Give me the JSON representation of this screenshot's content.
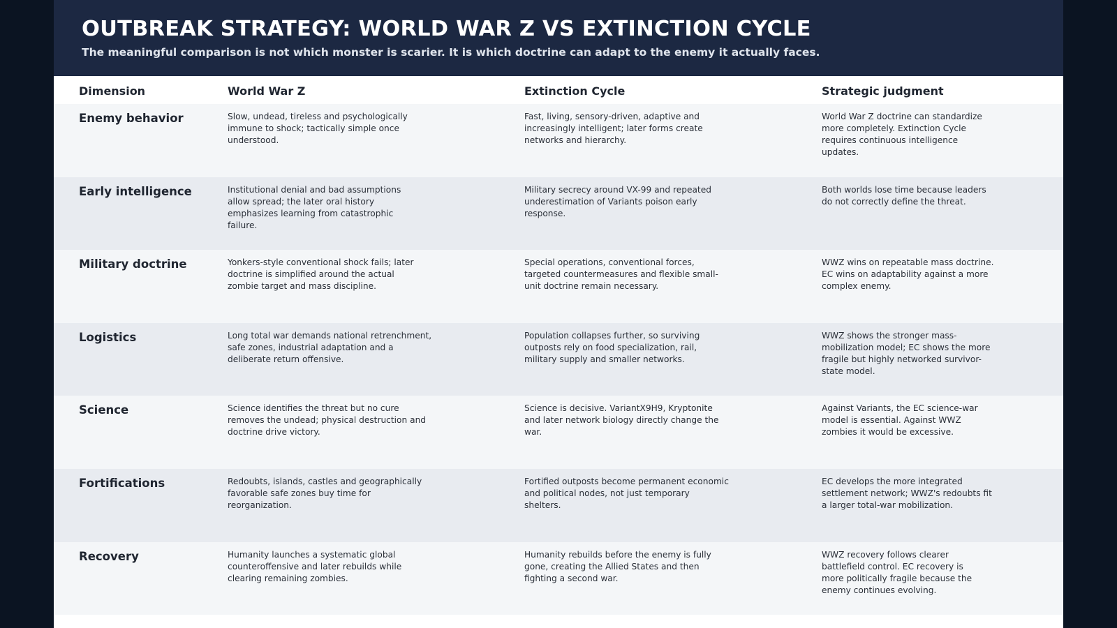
{
  "banner": {
    "title": "OUTBREAK STRATEGY: WORLD WAR Z VS EXTINCTION CYCLE",
    "subtitle": "The meaningful comparison is not which monster is scarier. It is which doctrine can adapt to the enemy it actually faces."
  },
  "table": {
    "headers": [
      "Dimension",
      "World War Z",
      "Extinction Cycle",
      "Strategic judgment"
    ],
    "rows": [
      {
        "dimension": "Enemy behavior",
        "wwz": [
          "Slow, undead, tireless and psychologically",
          "immune to shock; tactically simple once",
          "understood."
        ],
        "ec": [
          "Fast, living, sensory-driven, adaptive and",
          "increasingly intelligent; later forms create",
          "networks and hierarchy."
        ],
        "judgment": [
          "World War Z doctrine can standardize",
          "more completely. Extinction Cycle",
          "requires continuous intelligence",
          "updates."
        ]
      },
      {
        "dimension": "Early intelligence",
        "wwz": [
          "Institutional denial and bad assumptions",
          "allow spread; the later oral history",
          "emphasizes learning from catastrophic",
          "failure."
        ],
        "ec": [
          "Military secrecy around VX-99 and repeated",
          "underestimation of Variants poison early",
          "response."
        ],
        "judgment": [
          "Both worlds lose time because leaders",
          "do not correctly define the threat."
        ]
      },
      {
        "dimension": "Military doctrine",
        "wwz": [
          "Yonkers-style conventional shock fails; later",
          "doctrine is simplified around the actual",
          "zombie target and mass discipline."
        ],
        "ec": [
          "Special operations, conventional forces,",
          "targeted countermeasures and flexible small-",
          "unit doctrine remain necessary."
        ],
        "judgment": [
          "WWZ wins on repeatable mass doctrine.",
          "EC wins on adaptability against a more",
          "complex enemy."
        ]
      },
      {
        "dimension": "Logistics",
        "wwz": [
          "Long total war demands national retrenchment,",
          "safe zones, industrial adaptation and a",
          "deliberate return offensive."
        ],
        "ec": [
          "Population collapses further, so surviving",
          "outposts rely on food specialization, rail,",
          "military supply and smaller networks."
        ],
        "judgment": [
          "WWZ shows the stronger mass-",
          "mobilization model; EC shows the more",
          "fragile but highly networked survivor-",
          "state model."
        ]
      },
      {
        "dimension": "Science",
        "wwz": [
          "Science identifies the threat but no cure",
          "removes the undead; physical destruction and",
          "doctrine drive victory."
        ],
        "ec": [
          "Science is decisive. VariantX9H9, Kryptonite",
          "and later network biology directly change the",
          "war."
        ],
        "judgment": [
          "Against Variants, the EC science-war",
          "model is essential. Against WWZ",
          "zombies it would be excessive."
        ]
      },
      {
        "dimension": "Fortifications",
        "wwz": [
          "Redoubts, islands, castles and geographically",
          "favorable safe zones buy time for",
          "reorganization."
        ],
        "ec": [
          "Fortified outposts become permanent economic",
          "and political nodes, not just temporary",
          "shelters."
        ],
        "judgment": [
          "EC develops the more integrated",
          "settlement network; WWZ's redoubts fit",
          "a larger total-war mobilization."
        ]
      },
      {
        "dimension": "Recovery",
        "wwz": [
          "Humanity launches a systematic global",
          "counteroffensive and later rebuilds while",
          "clearing remaining zombies."
        ],
        "ec": [
          "Humanity rebuilds before the enemy is fully",
          "gone, creating the Allied States and then",
          "fighting a second war."
        ],
        "judgment": [
          "WWZ recovery follows clearer",
          "battlefield control. EC recovery is",
          "more politically fragile because the",
          "enemy continues evolving."
        ]
      }
    ]
  }
}
